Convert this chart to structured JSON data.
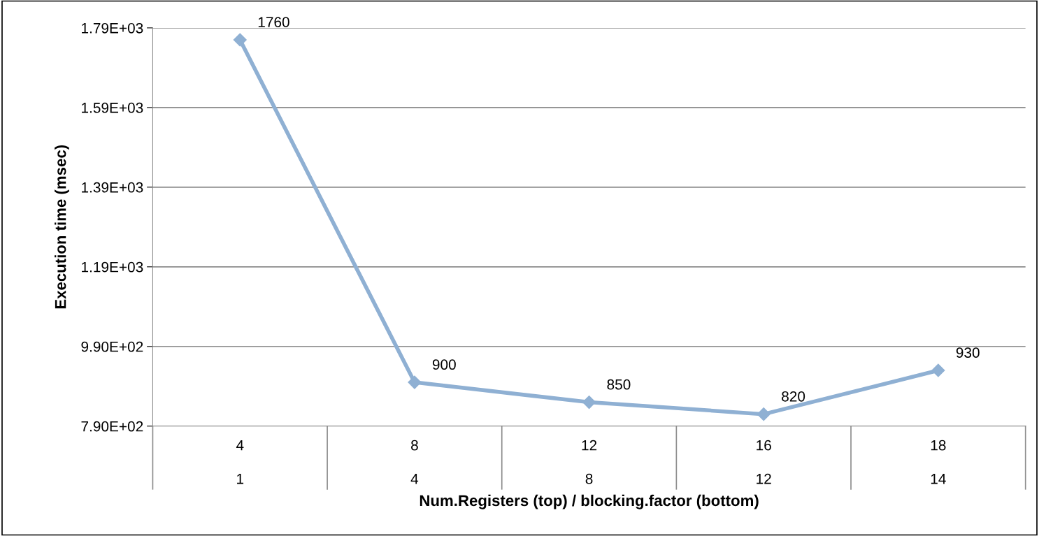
{
  "chart_data": {
    "type": "line",
    "ylabel": "Execution time (msec)",
    "xlabel": "Num.Registers (top) / blocking.factor (bottom)",
    "categories": [
      "4\n1",
      "8\n4",
      "12\n8",
      "16\n12",
      "18\n14"
    ],
    "series": [
      {
        "color": "#8fb0d3",
        "values": [
          1760,
          900,
          850,
          820,
          930
        ]
      }
    ],
    "ylim": [
      790,
      1790
    ],
    "yticks": [
      {
        "value": 790,
        "label": "7.90E+02"
      },
      {
        "value": 990,
        "label": "9.90E+02"
      },
      {
        "value": 1190,
        "label": "1.19E+03"
      },
      {
        "value": 1390,
        "label": "1.39E+03"
      },
      {
        "value": 1590,
        "label": "1.59E+03"
      },
      {
        "value": 1790,
        "label": "1.79E+03"
      }
    ],
    "grid": "y",
    "marker": "diamond",
    "line_style": "solid",
    "data_labels": true,
    "legend": false
  }
}
